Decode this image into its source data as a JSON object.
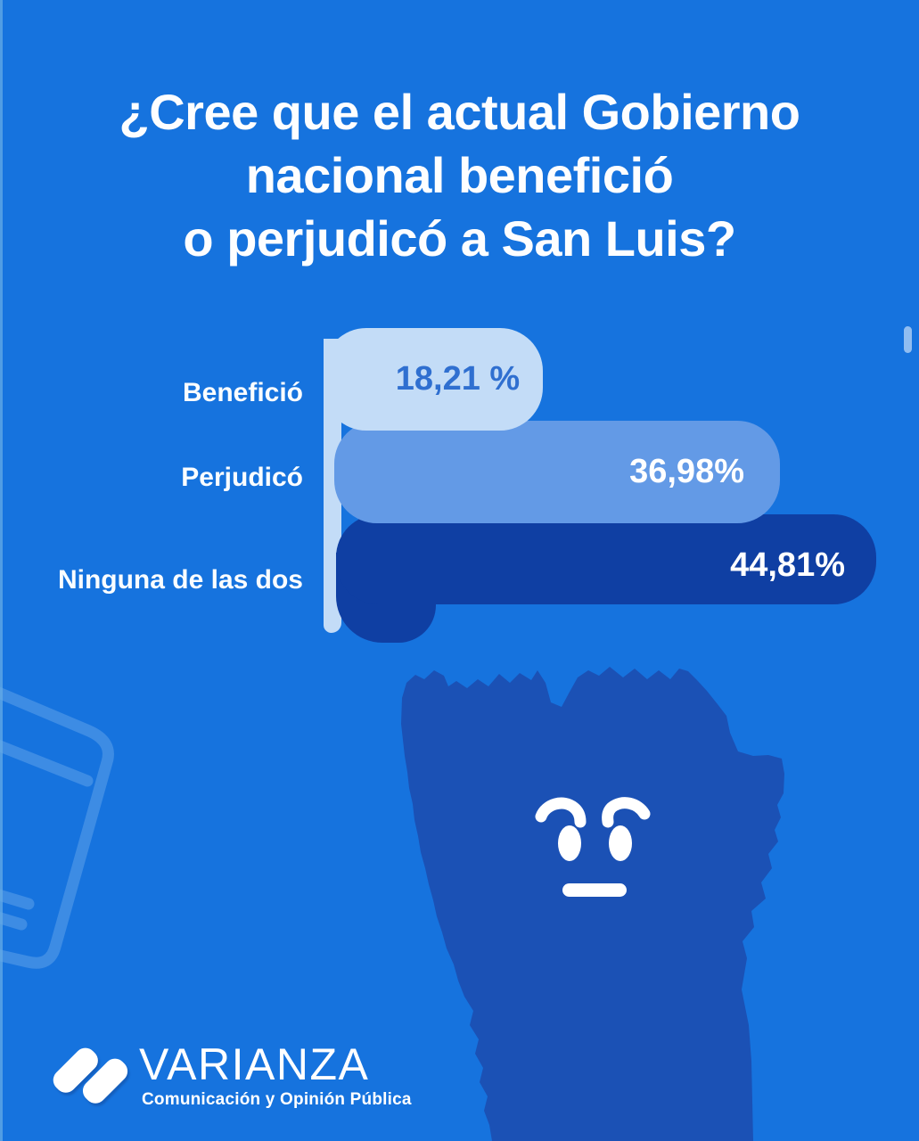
{
  "page": {
    "background": "#1673de",
    "left_edge_strip_color": "#66abe5"
  },
  "title": {
    "lines": [
      "¿Cree que el actual Gobierno",
      "nacional benefició",
      "o perjudicó a San Luis?"
    ]
  },
  "chart_data": {
    "type": "bar",
    "orientation": "horizontal",
    "title": "¿Cree que el actual Gobierno nacional benefició o perjudicó a San Luis?",
    "categories": [
      "Benefició",
      "Perjudicó",
      "Ninguna de las dos"
    ],
    "values": [
      18.21,
      36.98,
      44.81
    ],
    "value_labels": [
      "18,21 %",
      "36,98%",
      "44,81%"
    ],
    "unit": "%",
    "xlim": [
      0,
      45
    ],
    "grid": false,
    "legend": false,
    "bar_colors": [
      "#c3dcf7",
      "#639ae6",
      "#0f3fa3"
    ],
    "value_text_colors": [
      "#2f6fd0",
      "#ffffff",
      "#ffffff"
    ],
    "bar_style": "stacked-rounded-cards"
  },
  "map": {
    "region": "San Luis province silhouette",
    "color": "#1b51b5",
    "face": "worried-face",
    "face_color": "#ffffff"
  },
  "logo": {
    "brand": "VARIANZA",
    "tagline": "Comunicación y Opinión Pública",
    "color": "#ffffff"
  },
  "decor": {
    "outline_color": "#5fa0ea",
    "scrollbar_color": "#a6caf4"
  }
}
